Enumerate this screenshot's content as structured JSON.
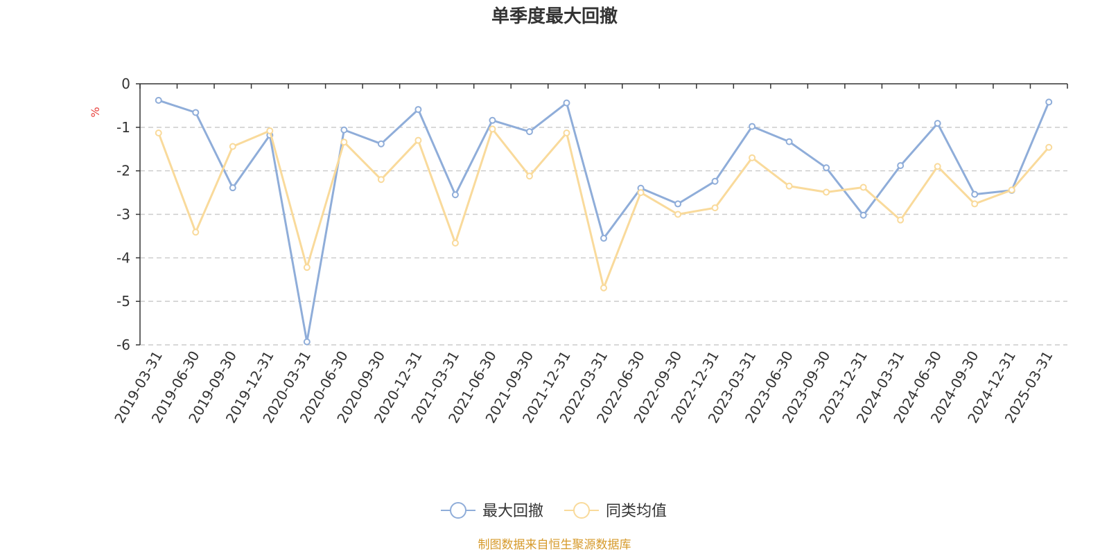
{
  "chart_data": {
    "type": "line",
    "title": "单季度最大回撤",
    "ylabel": "%",
    "ylim": [
      -6,
      0
    ],
    "yticks": [
      0,
      -1,
      -2,
      -3,
      -4,
      -5,
      -6
    ],
    "grid": true,
    "legend_position": "bottom-center",
    "x": [
      "2019-03-31",
      "2019-06-30",
      "2019-09-30",
      "2019-12-31",
      "2020-03-31",
      "2020-06-30",
      "2020-09-30",
      "2020-12-31",
      "2021-03-31",
      "2021-06-30",
      "2021-09-30",
      "2021-12-31",
      "2022-03-31",
      "2022-06-30",
      "2022-09-30",
      "2022-12-31",
      "2023-03-31",
      "2023-06-30",
      "2023-09-30",
      "2023-12-31",
      "2024-03-31",
      "2024-06-30",
      "2024-09-30",
      "2024-12-31",
      "2025-03-31"
    ],
    "series": [
      {
        "name": "最大回撤",
        "color": "#8fadd9",
        "values": [
          -0.38,
          -0.66,
          -2.39,
          -1.18,
          -5.93,
          -1.06,
          -1.38,
          -0.59,
          -2.55,
          -0.84,
          -1.1,
          -0.44,
          -3.55,
          -2.4,
          -2.76,
          -2.24,
          -0.98,
          -1.33,
          -1.93,
          -3.02,
          -1.88,
          -0.91,
          -2.54,
          -2.45,
          -0.42
        ]
      },
      {
        "name": "同类均值",
        "color": "#f9da9b",
        "values": [
          -1.13,
          -3.41,
          -1.44,
          -1.08,
          -4.22,
          -1.34,
          -2.2,
          -1.3,
          -3.66,
          -1.04,
          -2.12,
          -1.13,
          -4.69,
          -2.5,
          -3.0,
          -2.85,
          -1.7,
          -2.35,
          -2.49,
          -2.38,
          -3.13,
          -1.9,
          -2.76,
          -2.44,
          -1.46
        ]
      }
    ],
    "source": "制图数据来自恒生聚源数据库"
  },
  "colors": {
    "axis": "#333333",
    "grid": "#cccccc",
    "unit": "#e8413c",
    "source": "#d69a2b"
  }
}
